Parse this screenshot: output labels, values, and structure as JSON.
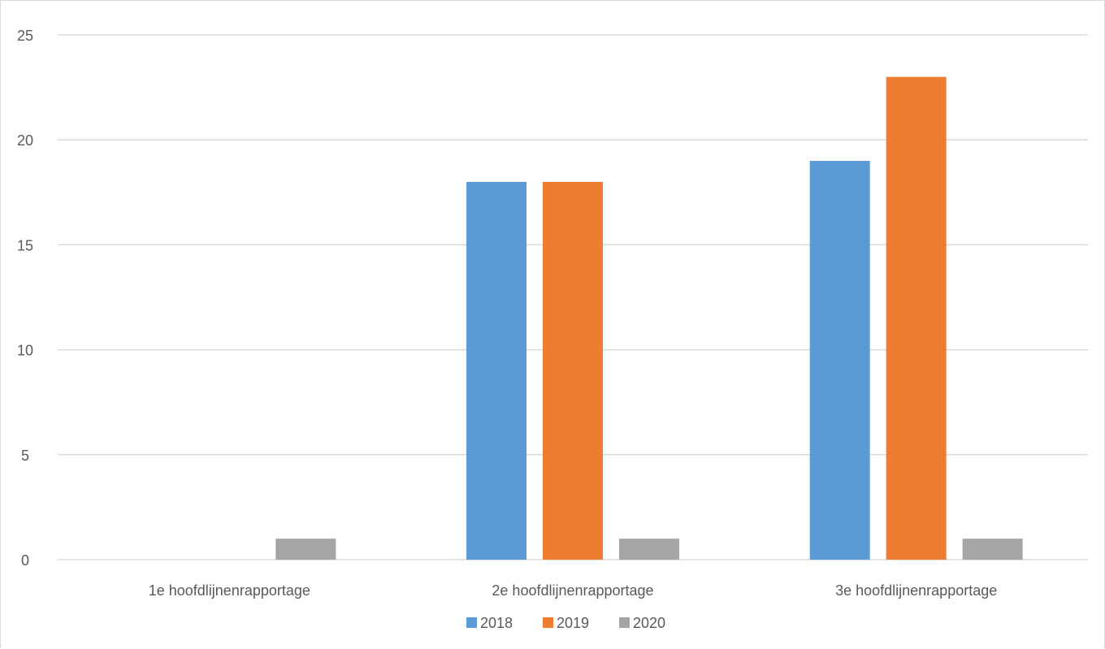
{
  "chart_data": {
    "type": "bar",
    "categories": [
      "1e hoofdlijnenrapportage",
      "2e hoofdlijnenrapportage",
      "3e hoofdlijnenrapportage"
    ],
    "series": [
      {
        "name": "2018",
        "values": [
          0,
          18,
          19
        ],
        "color": "#5b9bd5"
      },
      {
        "name": "2019",
        "values": [
          0,
          18,
          23
        ],
        "color": "#ed7d31"
      },
      {
        "name": "2020",
        "values": [
          1,
          1,
          1
        ],
        "color": "#a5a5a5"
      }
    ],
    "title": "",
    "xlabel": "",
    "ylabel": "",
    "ylim": [
      0,
      25
    ],
    "yticks": [
      0,
      5,
      10,
      15,
      20,
      25
    ],
    "grid": true,
    "legend_position": "bottom",
    "gridline_color": "#d9d9d9",
    "text_color": "#595959"
  }
}
